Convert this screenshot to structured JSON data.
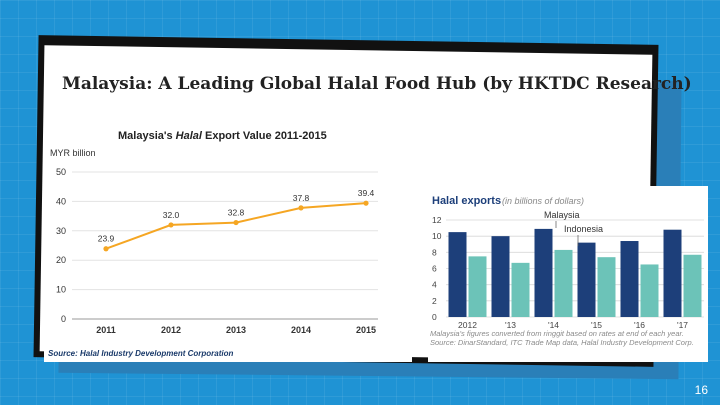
{
  "slide": {
    "title_bold": "Malaysia: A Leading Global Halal Food Hub",
    "title_rest": "(by HKTDC Research)",
    "page_number": "16"
  },
  "colors": {
    "background": "#1f93d4",
    "line_series": "#f5a623",
    "bar_malaysia": "#1d3f7a",
    "bar_indonesia": "#6cc3b8"
  },
  "chart_data": [
    {
      "type": "line",
      "title_prefix": "Malaysia's ",
      "title_italic": "Halal",
      "title_suffix": " Export Value 2011-2015",
      "ylabel": "MYR billion",
      "xlabel": "",
      "categories": [
        "2011",
        "2012",
        "2013",
        "2014",
        "2015"
      ],
      "values": [
        23.9,
        32.0,
        32.8,
        37.8,
        39.4
      ],
      "value_labels": [
        "23.9",
        "32.0",
        "32.8",
        "37.8",
        "39.4"
      ],
      "ylim": [
        0,
        50
      ],
      "yticks": [
        0,
        10,
        20,
        30,
        40,
        50
      ],
      "grid": true,
      "source": "Source: Halal Industry Development Corporation"
    },
    {
      "type": "bar",
      "title": "Halal exports",
      "subtitle": "(in billions of dollars)",
      "categories": [
        "2012",
        "'13",
        "'14",
        "'15",
        "'16",
        "'17"
      ],
      "series": [
        {
          "name": "Malaysia",
          "values": [
            10.5,
            10.0,
            10.9,
            9.2,
            9.4,
            10.8
          ]
        },
        {
          "name": "Indonesia",
          "values": [
            7.5,
            6.7,
            8.3,
            7.4,
            6.5,
            7.7
          ]
        }
      ],
      "ylim": [
        0,
        12
      ],
      "yticks": [
        0,
        2,
        4,
        6,
        8,
        10,
        12
      ],
      "grid": true,
      "note": "Malaysia's figures converted from ringgit based on rates at end of each year. Source: DinarStandard, ITC Trade Map data, Halal Industry Development Corp."
    }
  ]
}
